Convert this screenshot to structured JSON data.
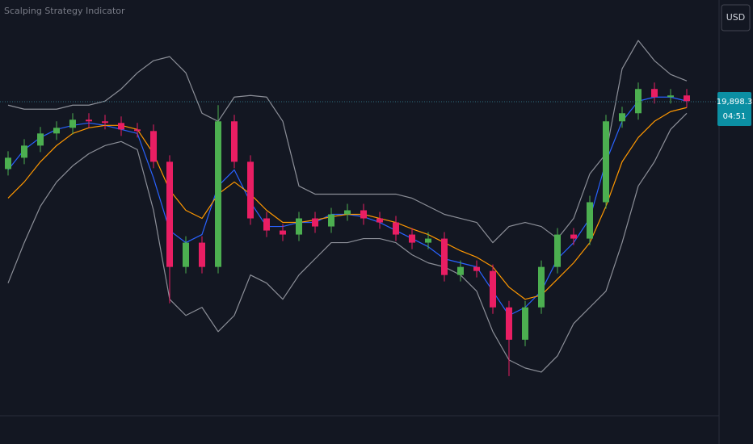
{
  "chart_data": {
    "type": "candlestick",
    "title": "Scalping Strategy Indicator",
    "currency": "USD",
    "last_price": {
      "value": 19898.3,
      "label": "19,898.3"
    },
    "countdown": "04:51",
    "ylim": [
      19510,
      20024
    ],
    "up_color": "#4caf50",
    "down_color": "#e91e63",
    "open": [
      19815,
      19829,
      19844,
      19859,
      19866,
      19876,
      19874,
      19872,
      19864,
      19862,
      19824,
      19694,
      19724,
      19694,
      19874,
      19824,
      19754,
      19739,
      19734,
      19754,
      19744,
      19759,
      19764,
      19754,
      19749,
      19734,
      19724,
      19729,
      19684,
      19694,
      19689,
      19644,
      19604,
      19644,
      19694,
      19734,
      19729,
      19774,
      19874,
      19884,
      19914,
      19904,
      19906
    ],
    "high": [
      19837,
      19852,
      19867,
      19874,
      19884,
      19884,
      19882,
      19880,
      19872,
      19870,
      19832,
      19732,
      19732,
      19894,
      19882,
      19832,
      19762,
      19747,
      19762,
      19762,
      19767,
      19772,
      19772,
      19762,
      19757,
      19742,
      19737,
      19737,
      19702,
      19702,
      19697,
      19652,
      19652,
      19702,
      19742,
      19742,
      19782,
      19882,
      19892,
      19922,
      19922,
      19914,
      19914
    ],
    "low": [
      19807,
      19821,
      19836,
      19851,
      19858,
      19866,
      19864,
      19856,
      19854,
      19816,
      19649,
      19686,
      19686,
      19686,
      19816,
      19746,
      19731,
      19726,
      19726,
      19736,
      19736,
      19751,
      19746,
      19741,
      19726,
      19716,
      19716,
      19676,
      19676,
      19681,
      19636,
      19559,
      19596,
      19636,
      19686,
      19721,
      19721,
      19766,
      19866,
      19876,
      19896,
      19896,
      19891
    ],
    "close": [
      19829,
      19844,
      19859,
      19866,
      19876,
      19874,
      19872,
      19864,
      19862,
      19824,
      19694,
      19724,
      19694,
      19874,
      19824,
      19754,
      19739,
      19734,
      19754,
      19744,
      19759,
      19764,
      19754,
      19749,
      19734,
      19724,
      19729,
      19684,
      19694,
      19689,
      19644,
      19604,
      19644,
      19694,
      19734,
      19729,
      19774,
      19874,
      19884,
      19914,
      19904,
      19906,
      19899
    ],
    "lines": [
      {
        "color": "#8c8f98",
        "values": [
          19894,
          19889,
          19889,
          19889,
          19894,
          19894,
          19899,
          19914,
          19934,
          19949,
          19954,
          19934,
          19884,
          19874,
          19904,
          19906,
          19904,
          19874,
          19794,
          19784,
          19784,
          19784,
          19784,
          19784,
          19784,
          19779,
          19769,
          19759,
          19754,
          19749,
          19724,
          19744,
          19749,
          19744,
          19729,
          19754,
          19809,
          19834,
          19939,
          19974,
          19949,
          19932,
          19924
        ]
      },
      {
        "color": "#8c8f98",
        "values": [
          19674,
          19724,
          19769,
          19799,
          19819,
          19834,
          19844,
          19849,
          19839,
          19764,
          19654,
          19634,
          19644,
          19614,
          19634,
          19684,
          19674,
          19654,
          19684,
          19704,
          19724,
          19724,
          19729,
          19729,
          19724,
          19709,
          19699,
          19694,
          19684,
          19664,
          19614,
          19579,
          19569,
          19564,
          19584,
          19624,
          19644,
          19664,
          19724,
          19794,
          19824,
          19864,
          19884
        ]
      },
      {
        "color": "#2962ff",
        "values": [
          19814,
          19839,
          19854,
          19864,
          19869,
          19872,
          19869,
          19864,
          19859,
          19804,
          19739,
          19724,
          19734,
          19794,
          19814,
          19774,
          19744,
          19744,
          19749,
          19749,
          19759,
          19759,
          19756,
          19749,
          19739,
          19729,
          19719,
          19704,
          19699,
          19694,
          19664,
          19634,
          19644,
          19664,
          19704,
          19724,
          19754,
          19824,
          19874,
          19899,
          19904,
          19904,
          19899
        ]
      },
      {
        "color": "#ff9800",
        "values": [
          19779,
          19799,
          19824,
          19844,
          19859,
          19866,
          19869,
          19869,
          19864,
          19834,
          19789,
          19764,
          19754,
          19784,
          19799,
          19784,
          19764,
          19749,
          19749,
          19752,
          19756,
          19759,
          19759,
          19754,
          19749,
          19741,
          19734,
          19724,
          19714,
          19706,
          19694,
          19669,
          19654,
          19659,
          19679,
          19699,
          19724,
          19769,
          19824,
          19854,
          19874,
          19886,
          19891
        ]
      }
    ]
  }
}
